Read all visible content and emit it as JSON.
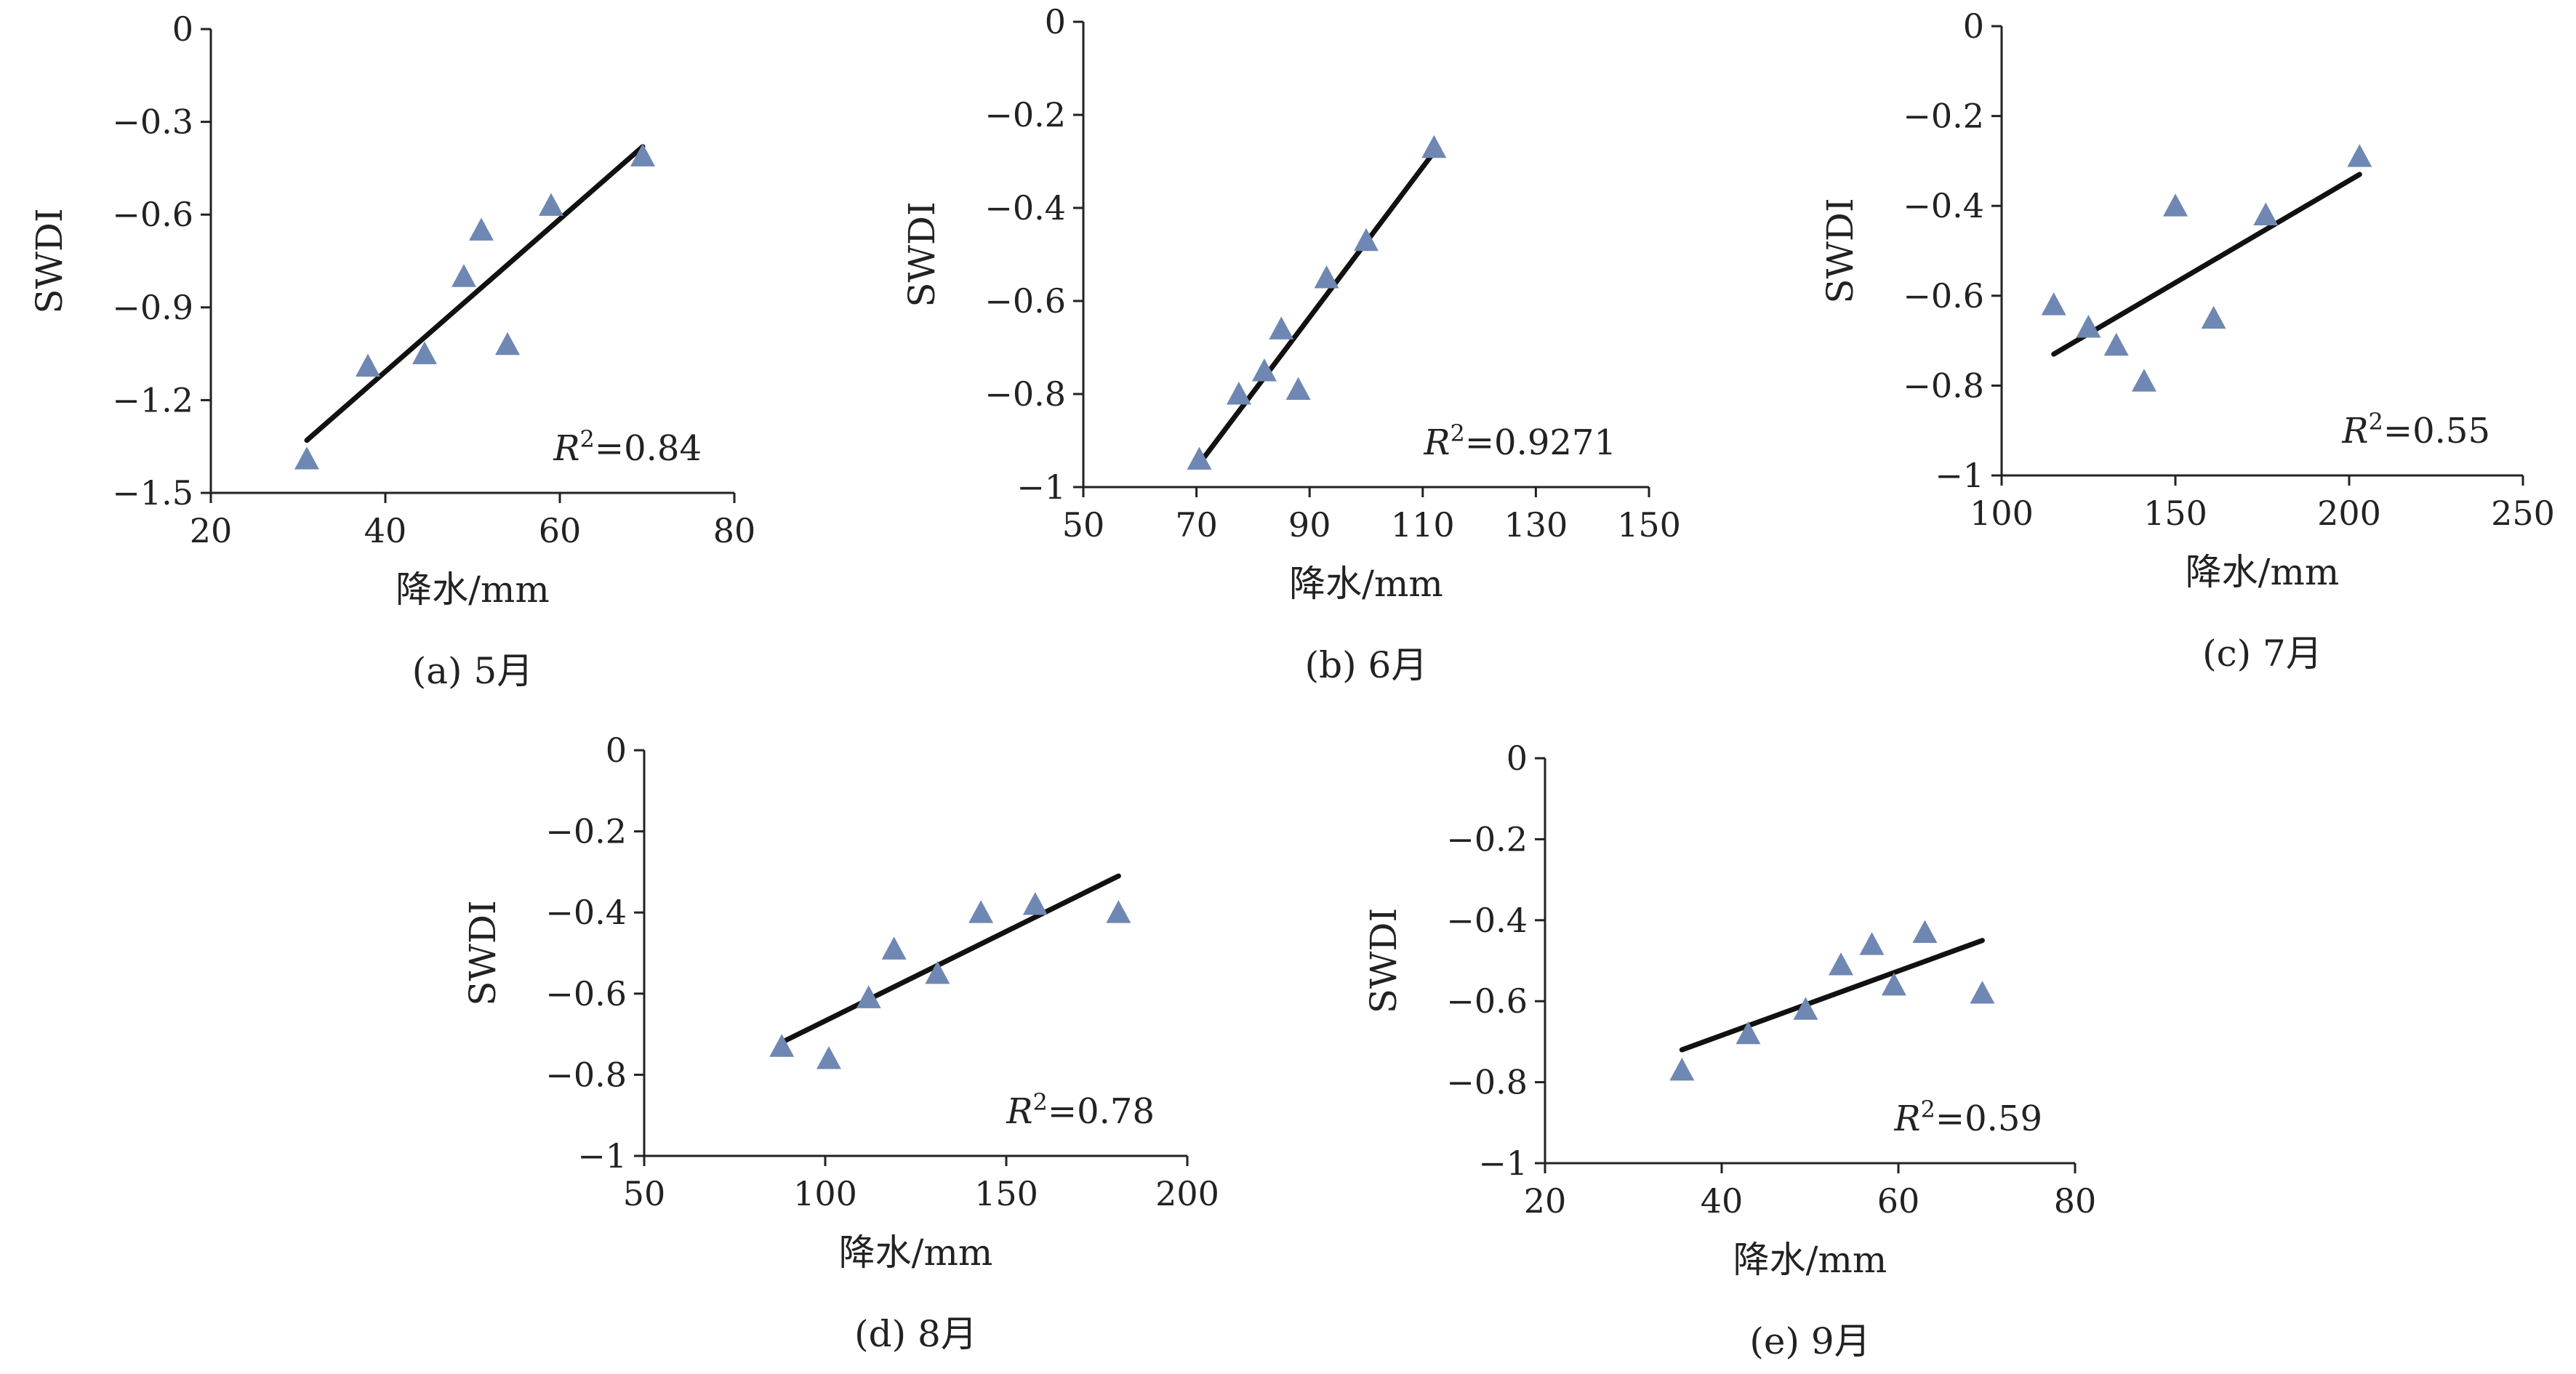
{
  "chart_data": [
    {
      "type": "scatter",
      "caption": "(a) 5月",
      "xlabel": "降水/mm",
      "ylabel": "SWDI",
      "xlim": [
        20,
        80
      ],
      "ylim": [
        -1.5,
        0
      ],
      "xticks": [
        "20",
        "40",
        "60",
        "80"
      ],
      "yticks": [
        "0",
        "−0.3",
        "−0.6",
        "−0.9",
        "−1.2",
        "−1.5"
      ],
      "r2_label": "R²=0.84",
      "marker_color": "#6f87b3",
      "points": [
        [
          31,
          -1.39
        ],
        [
          38,
          -1.09
        ],
        [
          44.5,
          -1.05
        ],
        [
          49,
          -0.8
        ],
        [
          51,
          -0.65
        ],
        [
          54,
          -1.02
        ],
        [
          59,
          -0.57
        ],
        [
          69.5,
          -0.41
        ]
      ],
      "trendline": [
        [
          31,
          -1.33
        ],
        [
          69.5,
          -0.38
        ]
      ]
    },
    {
      "type": "scatter",
      "caption": "(b) 6月",
      "xlabel": "降水/mm",
      "ylabel": "SWDI",
      "xlim": [
        50,
        150
      ],
      "ylim": [
        -1,
        0
      ],
      "xticks": [
        "50",
        "70",
        "90",
        "110",
        "130",
        "150"
      ],
      "yticks": [
        "0",
        "−0.2",
        "−0.4",
        "−0.6",
        "−0.8",
        "−1"
      ],
      "r2_label": "R²=0.9271",
      "marker_color": "#6f87b3",
      "points": [
        [
          70.5,
          -0.94
        ],
        [
          77.5,
          -0.8
        ],
        [
          82,
          -0.75
        ],
        [
          85,
          -0.66
        ],
        [
          88,
          -0.79
        ],
        [
          93,
          -0.55
        ],
        [
          100,
          -0.47
        ],
        [
          112,
          -0.27
        ]
      ],
      "trendline": [
        [
          70.5,
          -0.95
        ],
        [
          112,
          -0.28
        ]
      ]
    },
    {
      "type": "scatter",
      "caption": "(c) 7月",
      "xlabel": "降水/mm",
      "ylabel": "SWDI",
      "xlim": [
        100,
        250
      ],
      "ylim": [
        -1,
        0
      ],
      "xticks": [
        "100",
        "150",
        "200",
        "250"
      ],
      "yticks": [
        "0",
        "−0.2",
        "−0.4",
        "−0.6",
        "−0.8",
        "−1"
      ],
      "r2_label": "R²=0.55",
      "marker_color": "#6f87b3",
      "points": [
        [
          115,
          -0.62
        ],
        [
          125,
          -0.67
        ],
        [
          133,
          -0.71
        ],
        [
          141,
          -0.79
        ],
        [
          150,
          -0.4
        ],
        [
          161,
          -0.65
        ],
        [
          176,
          -0.42
        ],
        [
          203,
          -0.29
        ]
      ],
      "trendline": [
        [
          115,
          -0.73
        ],
        [
          203,
          -0.33
        ]
      ]
    },
    {
      "type": "scatter",
      "caption": "(d) 8月",
      "xlabel": "降水/mm",
      "ylabel": "SWDI",
      "xlim": [
        50,
        200
      ],
      "ylim": [
        -1,
        0
      ],
      "xticks": [
        "50",
        "100",
        "150",
        "200"
      ],
      "yticks": [
        "0",
        "−0.2",
        "−0.4",
        "−0.6",
        "−0.8",
        "−1"
      ],
      "r2_label": "R²=0.78",
      "marker_color": "#6f87b3",
      "points": [
        [
          88,
          -0.73
        ],
        [
          101,
          -0.76
        ],
        [
          112,
          -0.61
        ],
        [
          119,
          -0.49
        ],
        [
          131,
          -0.55
        ],
        [
          143,
          -0.4
        ],
        [
          158,
          -0.38
        ],
        [
          181,
          -0.4
        ]
      ],
      "trendline": [
        [
          88,
          -0.72
        ],
        [
          181,
          -0.31
        ]
      ]
    },
    {
      "type": "scatter",
      "caption": "(e) 9月",
      "xlabel": "降水/mm",
      "ylabel": "SWDI",
      "xlim": [
        20,
        80
      ],
      "ylim": [
        -1,
        0
      ],
      "xticks": [
        "20",
        "40",
        "60",
        "80"
      ],
      "yticks": [
        "0",
        "−0.2",
        "−0.4",
        "−0.6",
        "−0.8",
        "−1"
      ],
      "r2_label": "R²=0.59",
      "marker_color": "#6f87b3",
      "points": [
        [
          35.5,
          -0.77
        ],
        [
          43,
          -0.68
        ],
        [
          49.5,
          -0.62
        ],
        [
          53.5,
          -0.51
        ],
        [
          57,
          -0.46
        ],
        [
          59.5,
          -0.56
        ],
        [
          63,
          -0.43
        ],
        [
          69.5,
          -0.58
        ]
      ],
      "trendline": [
        [
          35.5,
          -0.72
        ],
        [
          69.5,
          -0.45
        ]
      ]
    }
  ]
}
